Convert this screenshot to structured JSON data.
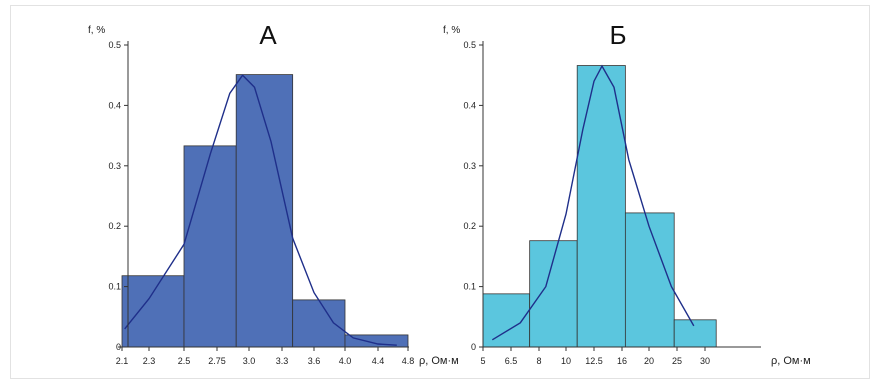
{
  "chart_data": [
    {
      "type": "bar",
      "title": "А",
      "ylabel": "f, %",
      "xlabel": "ρ, Ом·м",
      "ylim": [
        0,
        0.5
      ],
      "y_ticks": [
        "0",
        "0.1",
        "0.2",
        "0.3",
        "0.4",
        "0.5"
      ],
      "x_ticks": [
        "2.1",
        "2.3",
        "2.5",
        "2.75",
        "3.0",
        "3.3",
        "3.6",
        "4.0",
        "4.4",
        "4.8"
      ],
      "bins": [
        {
          "from": "2.1",
          "to": "2.5",
          "value": 0.118
        },
        {
          "from": "2.5",
          "to": "2.9",
          "value": 0.333
        },
        {
          "from": "2.9",
          "to": "3.4",
          "value": 0.451
        },
        {
          "from": "3.4",
          "to": "4.0",
          "value": 0.078
        },
        {
          "from": "4.0",
          "to": "4.8",
          "value": 0.02
        }
      ],
      "curve": [
        [
          2.12,
          0.03
        ],
        [
          2.3,
          0.08
        ],
        [
          2.5,
          0.17
        ],
        [
          2.7,
          0.32
        ],
        [
          2.85,
          0.42
        ],
        [
          2.95,
          0.45
        ],
        [
          3.05,
          0.43
        ],
        [
          3.2,
          0.34
        ],
        [
          3.4,
          0.18
        ],
        [
          3.6,
          0.09
        ],
        [
          3.85,
          0.04
        ],
        [
          4.1,
          0.015
        ],
        [
          4.4,
          0.005
        ],
        [
          4.65,
          0.003
        ]
      ],
      "bar_color": "#4f70b7",
      "curve_color": "#1f2f8a"
    },
    {
      "type": "bar",
      "title": "Б",
      "ylabel": "f, %",
      "xlabel": "ρ, Ом·м",
      "ylim": [
        0,
        0.5
      ],
      "y_ticks": [
        "0",
        "0.1",
        "0.2",
        "0.3",
        "0.4",
        "0.5"
      ],
      "x_ticks": [
        "5",
        "6.5",
        "8",
        "10",
        "12.5",
        "16",
        "20",
        "25",
        "30"
      ],
      "bins": [
        {
          "from": "5",
          "to": "7.5",
          "value": 0.088
        },
        {
          "from": "7.5",
          "to": "11",
          "value": 0.176
        },
        {
          "from": "11",
          "to": "16.5",
          "value": 0.466
        },
        {
          "from": "16.5",
          "to": "24.5",
          "value": 0.222
        },
        {
          "from": "24.5",
          "to": "32",
          "value": 0.045
        }
      ],
      "curve": [
        [
          5.5,
          0.012
        ],
        [
          7,
          0.04
        ],
        [
          8.5,
          0.1
        ],
        [
          10,
          0.22
        ],
        [
          11.5,
          0.36
        ],
        [
          12.5,
          0.44
        ],
        [
          13.5,
          0.465
        ],
        [
          15,
          0.43
        ],
        [
          17,
          0.31
        ],
        [
          20,
          0.2
        ],
        [
          24,
          0.1
        ],
        [
          28,
          0.035
        ]
      ],
      "bar_color": "#5bc6de",
      "curve_color": "#1f2f8a"
    }
  ]
}
